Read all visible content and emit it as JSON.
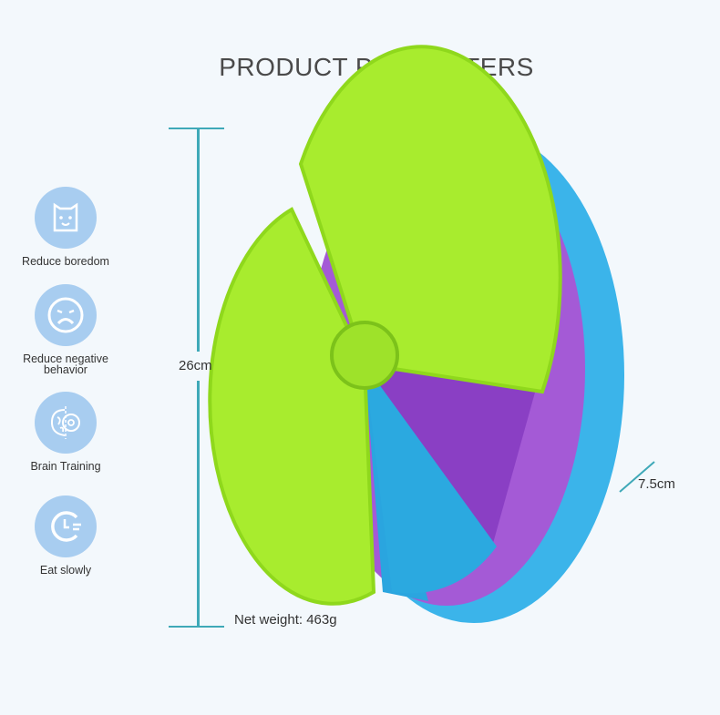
{
  "title": "PRODUCT PARAMETERS",
  "features": [
    {
      "label": "Reduce boredom",
      "icon": "dog-face-icon"
    },
    {
      "label_line1": "Reduce negative",
      "label_line2": "behavior",
      "icon": "sad-face-icon"
    },
    {
      "label": "Brain Training",
      "icon": "brain-gear-icon"
    },
    {
      "label": "Eat slowly",
      "icon": "clock-icon"
    }
  ],
  "dimensions": {
    "height": "26cm",
    "depth": "7.5cm",
    "net_weight": "Net weight: 463g"
  },
  "colors": {
    "accent_line": "#3fa9b8",
    "icon_bg": "#a8cdf0",
    "blue_layer": "#3bb4ea",
    "purple_layer": "#a45ad6",
    "green_layer": "#a8ec2e"
  }
}
